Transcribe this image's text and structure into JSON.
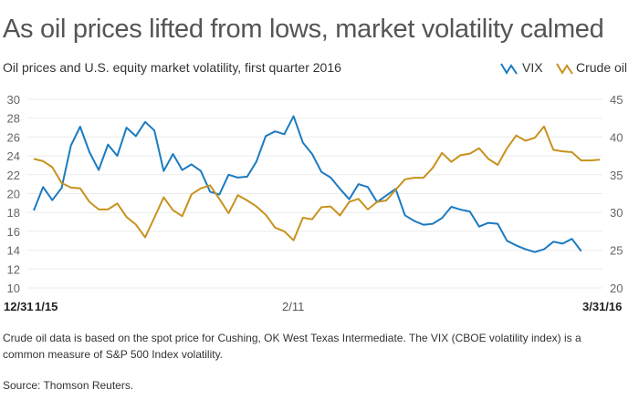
{
  "title": "As oil prices lifted from lows, market volatility calmed",
  "subtitle": "Oil prices and U.S. equity market volatility, first quarter 2016",
  "footnote": "Crude oil data is based on the spot price for Cushing, OK West Texas Intermediate. The VIX (CBOE volatility index) is a common measure of S&P 500 Index volatility.",
  "source": "Source: Thomson Reuters.",
  "chart_data": {
    "type": "line",
    "title": "Oil prices and U.S. equity market volatility, first quarter 2016",
    "x_tick_labels": [
      "12/31",
      "1/15",
      "2/11",
      "3/31/16"
    ],
    "left_axis": {
      "series": "VIX",
      "ylim": [
        10,
        30
      ],
      "ticks": [
        10,
        12,
        14,
        16,
        18,
        20,
        22,
        24,
        26,
        28,
        30
      ]
    },
    "right_axis": {
      "series": "Crude oil",
      "ylim": [
        20,
        45
      ],
      "ticks": [
        20,
        25,
        30,
        35,
        40,
        45
      ]
    },
    "grid": true,
    "legend_placement": "top-right",
    "series": [
      {
        "name": "VIX",
        "axis": "left",
        "color": "#1b7bc0",
        "values": [
          18.2,
          20.7,
          19.3,
          20.6,
          25.1,
          27.1,
          24.4,
          22.5,
          25.2,
          24.0,
          27.0,
          26.1,
          27.6,
          26.7,
          22.4,
          24.2,
          22.5,
          23.1,
          22.4,
          20.2,
          19.9,
          22.0,
          21.7,
          21.8,
          23.4,
          26.1,
          26.6,
          26.3,
          28.2,
          25.4,
          24.2,
          22.3,
          21.7,
          20.5,
          19.4,
          21.0,
          20.7,
          19.1,
          19.8,
          20.5,
          17.7,
          17.1,
          16.7,
          16.8,
          17.4,
          18.6,
          18.3,
          18.1,
          16.5,
          16.9,
          16.8,
          15.0,
          14.5,
          14.1,
          13.8,
          14.1,
          14.9,
          14.7,
          15.2,
          13.9,
          null,
          null
        ]
      },
      {
        "name": "Crude oil",
        "axis": "right",
        "color": "#c8921e",
        "values": [
          37.1,
          36.8,
          36.0,
          33.9,
          33.3,
          33.2,
          31.4,
          30.4,
          30.4,
          31.2,
          29.4,
          28.4,
          26.7,
          29.3,
          32.0,
          30.3,
          29.5,
          32.4,
          33.2,
          33.6,
          31.8,
          29.9,
          32.3,
          31.6,
          30.8,
          29.7,
          28.0,
          27.5,
          26.3,
          29.3,
          29.1,
          30.7,
          30.8,
          29.6,
          31.4,
          31.8,
          30.4,
          31.4,
          31.6,
          33.0,
          34.4,
          34.6,
          34.6,
          35.9,
          37.9,
          36.7,
          37.6,
          37.8,
          38.5,
          37.1,
          36.3,
          38.5,
          40.2,
          39.5,
          39.9,
          41.4,
          38.3,
          38.1,
          38.0,
          36.9,
          36.9,
          37.0
        ]
      }
    ]
  }
}
